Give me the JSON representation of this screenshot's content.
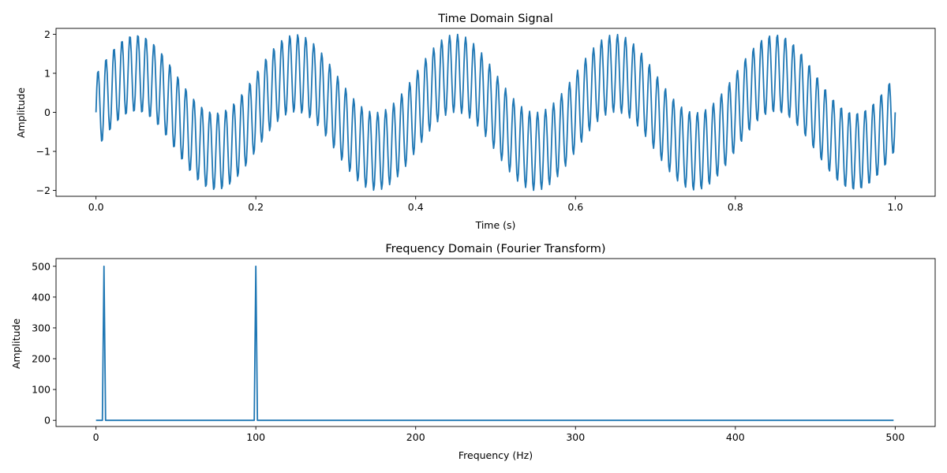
{
  "chart_data": [
    {
      "type": "line",
      "title": "Time Domain Signal",
      "xlabel": "Time (s)",
      "ylabel": "Amplitude",
      "xlim": [
        -0.05,
        1.05
      ],
      "ylim": [
        -2.15,
        2.15
      ],
      "xticks": [
        0.0,
        0.2,
        0.4,
        0.6,
        0.8,
        1.0
      ],
      "xtick_labels": [
        "0.0",
        "0.2",
        "0.4",
        "0.6",
        "0.8",
        "1.0"
      ],
      "yticks": [
        -2,
        -1,
        0,
        1,
        2
      ],
      "ytick_labels": [
        "−2",
        "−1",
        "0",
        "1",
        "2"
      ],
      "grid": false,
      "series": [
        {
          "formula": "sin(2π·5·t) + sin(2π·100·t)",
          "x_start": 0.0,
          "x_end": 1.0,
          "samples": 1000,
          "components": [
            {
              "frequency_hz": 5,
              "amplitude": 1
            },
            {
              "frequency_hz": 100,
              "amplitude": 1
            }
          ],
          "color": "#1f77b4"
        }
      ]
    },
    {
      "type": "line",
      "title": "Frequency Domain (Fourier Transform)",
      "xlabel": "Frequency (Hz)",
      "ylabel": "Amplitude",
      "xlim": [
        -25,
        525
      ],
      "ylim": [
        -20,
        525
      ],
      "xticks": [
        0,
        100,
        200,
        300,
        400,
        500
      ],
      "xtick_labels": [
        "0",
        "100",
        "200",
        "300",
        "400",
        "500"
      ],
      "yticks": [
        0,
        100,
        200,
        300,
        400,
        500
      ],
      "ytick_labels": [
        "0",
        "100",
        "200",
        "300",
        "400",
        "500"
      ],
      "grid": false,
      "series": [
        {
          "x": [
            0,
            4,
            5,
            6,
            99,
            100,
            101,
            499
          ],
          "y": [
            0,
            0,
            500,
            0,
            0,
            500,
            0,
            0
          ],
          "color": "#1f77b4"
        }
      ]
    }
  ]
}
